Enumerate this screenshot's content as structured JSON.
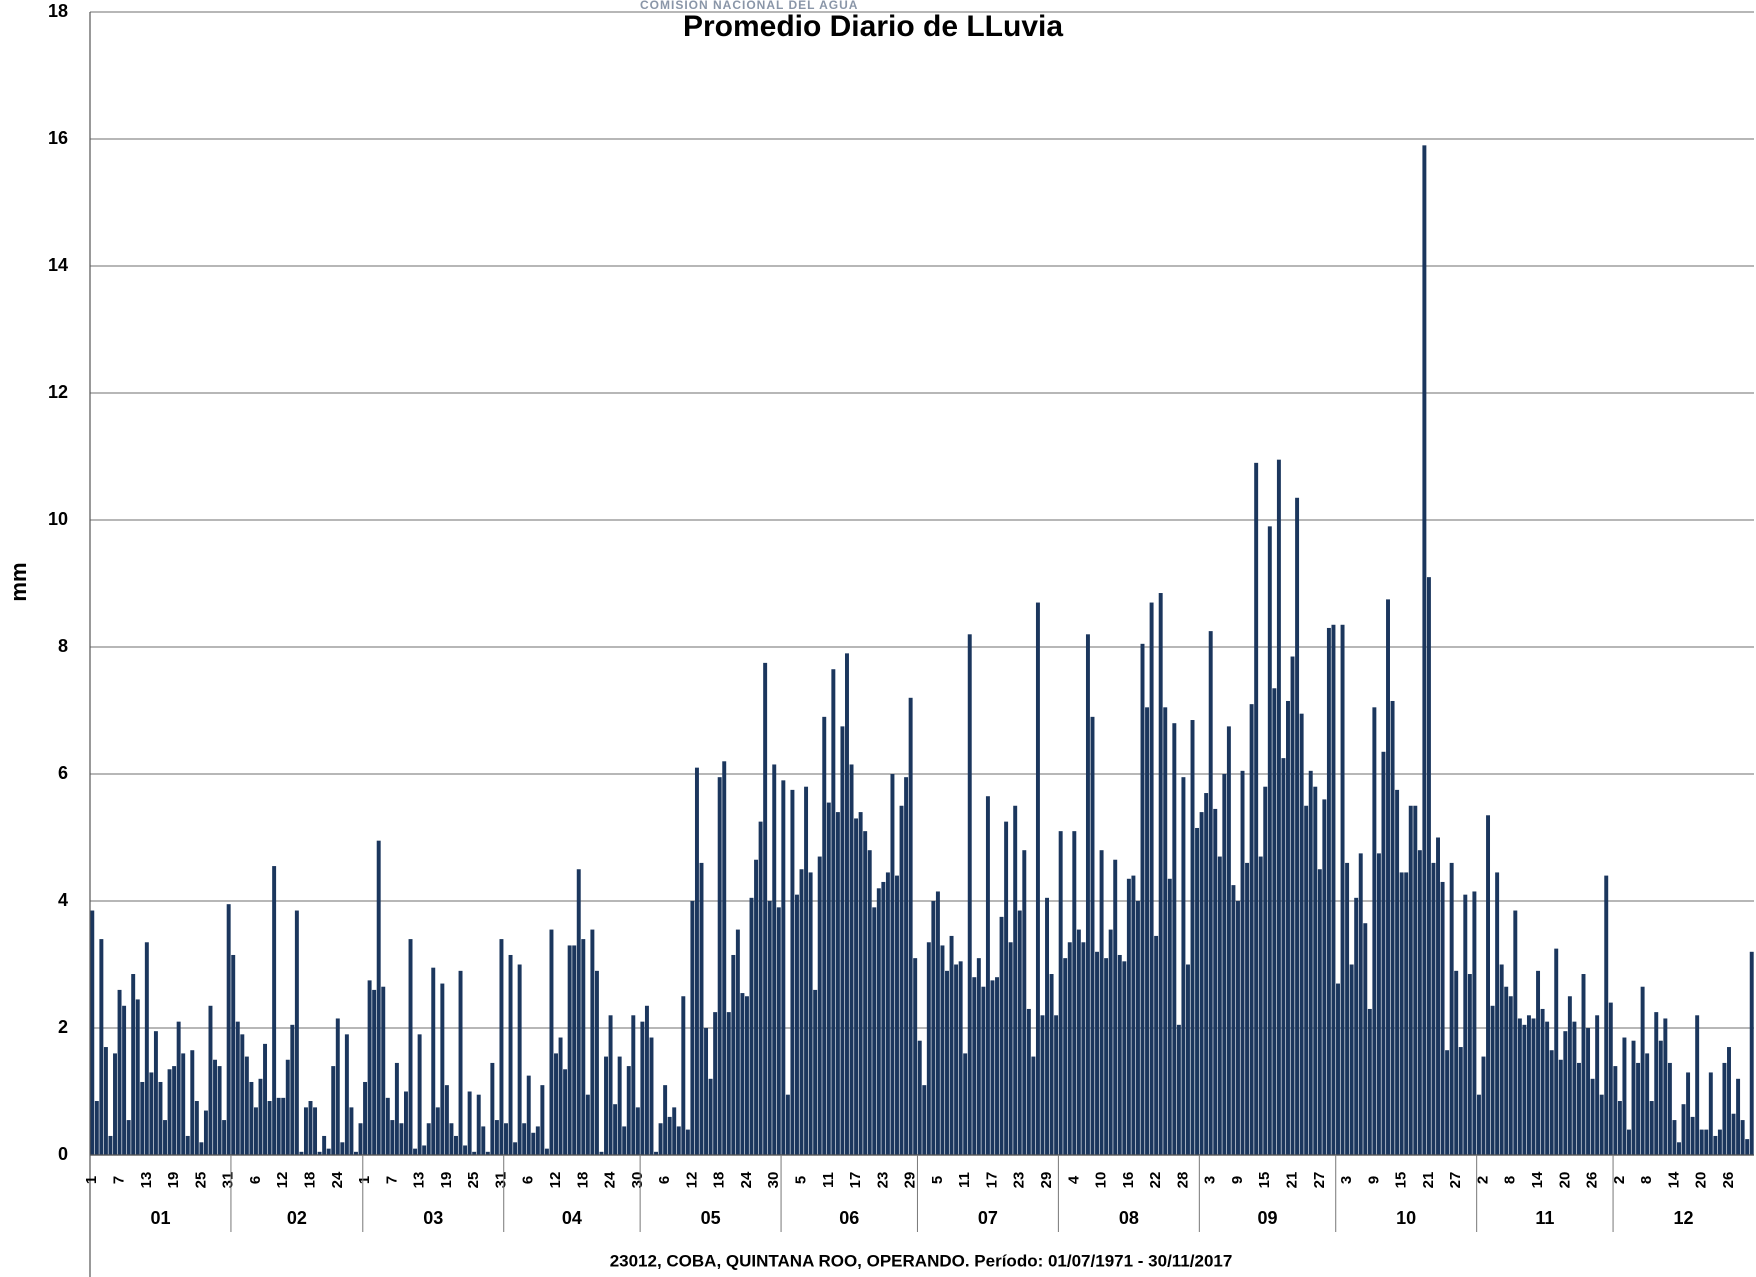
{
  "chart_data": {
    "type": "bar",
    "title": "Promedio Diario de LLuvia",
    "header_text": "COMISIÓN NACIONAL DEL AGUA",
    "y_label": "mm",
    "x_label": "23012, COBA, QUINTANA ROO, OPERANDO. Período: 01/07/1971 - 30/11/2017",
    "color": "#1b365d",
    "ylim": [
      0,
      18
    ],
    "yticks": [
      0,
      2,
      4,
      6,
      8,
      10,
      12,
      14,
      16,
      18
    ],
    "grid": true,
    "months": [
      "01",
      "02",
      "03",
      "04",
      "05",
      "06",
      "07",
      "08",
      "09",
      "10",
      "11",
      "12"
    ],
    "categories": [
      "1",
      null,
      null,
      null,
      null,
      null,
      "7",
      null,
      null,
      null,
      null,
      null,
      "13",
      null,
      null,
      null,
      null,
      null,
      "19",
      null,
      null,
      null,
      null,
      null,
      "25",
      null,
      null,
      null,
      null,
      null,
      "31",
      null,
      null,
      null,
      null,
      null,
      "6",
      null,
      null,
      null,
      null,
      null,
      "12",
      null,
      null,
      null,
      null,
      null,
      "18",
      null,
      null,
      null,
      null,
      null,
      "24",
      null,
      null,
      null,
      null,
      null,
      "1",
      null,
      null,
      null,
      null,
      null,
      "7",
      null,
      null,
      null,
      null,
      null,
      "13",
      null,
      null,
      null,
      null,
      null,
      "19",
      null,
      null,
      null,
      null,
      null,
      "25",
      null,
      null,
      null,
      null,
      null,
      "31",
      null,
      null,
      null,
      null,
      null,
      "6",
      null,
      null,
      null,
      null,
      null,
      "12",
      null,
      null,
      null,
      null,
      null,
      "18",
      null,
      null,
      null,
      null,
      null,
      "24",
      null,
      null,
      null,
      null,
      null,
      "30",
      null,
      null,
      null,
      null,
      null,
      "6",
      null,
      null,
      null,
      null,
      null,
      "12",
      null,
      null,
      null,
      null,
      null,
      "18",
      null,
      null,
      null,
      null,
      null,
      "24",
      null,
      null,
      null,
      null,
      null,
      "30",
      null,
      null,
      null,
      null,
      null,
      "5",
      null,
      null,
      null,
      null,
      null,
      "11",
      null,
      null,
      null,
      null,
      null,
      "17",
      null,
      null,
      null,
      null,
      null,
      "23",
      null,
      null,
      null,
      null,
      null,
      "29",
      null,
      null,
      null,
      null,
      null,
      "5",
      null,
      null,
      null,
      null,
      null,
      "11",
      null,
      null,
      null,
      null,
      null,
      "17",
      null,
      null,
      null,
      null,
      null,
      "23",
      null,
      null,
      null,
      null,
      null,
      "29",
      null,
      null,
      null,
      null,
      null,
      "4",
      null,
      null,
      null,
      null,
      null,
      "10",
      null,
      null,
      null,
      null,
      null,
      "16",
      null,
      null,
      null,
      null,
      null,
      "22",
      null,
      null,
      null,
      null,
      null,
      "28",
      null,
      null,
      null,
      null,
      null,
      "3",
      null,
      null,
      null,
      null,
      null,
      "9",
      null,
      null,
      null,
      null,
      null,
      "15",
      null,
      null,
      null,
      null,
      null,
      "21",
      null,
      null,
      null,
      null,
      null,
      "27",
      null,
      null,
      null,
      null,
      null,
      "3",
      null,
      null,
      null,
      null,
      null,
      "9",
      null,
      null,
      null,
      null,
      null,
      "15",
      null,
      null,
      null,
      null,
      null,
      "21",
      null,
      null,
      null,
      null,
      null,
      "27",
      null,
      null,
      null,
      null,
      null,
      "2",
      null,
      null,
      null,
      null,
      null,
      "8",
      null,
      null,
      null,
      null,
      null,
      "14",
      null,
      null,
      null,
      null,
      null,
      "20",
      null,
      null,
      null,
      null,
      null,
      "26",
      null,
      null,
      null,
      null,
      null,
      "2",
      null,
      null,
      null,
      null,
      null,
      "8",
      null,
      null,
      null,
      null,
      null,
      "14",
      null,
      null,
      null,
      null,
      null,
      "20",
      null,
      null,
      null,
      null,
      null,
      "26",
      null,
      null,
      null,
      null,
      null
    ],
    "values": [
      3.85,
      0.85,
      3.4,
      1.7,
      0.3,
      1.6,
      2.6,
      2.35,
      0.55,
      2.85,
      2.45,
      1.15,
      3.35,
      1.3,
      1.95,
      1.15,
      0.55,
      1.35,
      1.4,
      2.1,
      1.6,
      0.3,
      1.65,
      0.85,
      0.2,
      0.7,
      2.35,
      1.5,
      1.4,
      0.55,
      3.95,
      3.15,
      2.1,
      1.9,
      1.55,
      1.15,
      0.75,
      1.2,
      1.75,
      0.85,
      4.55,
      0.9,
      0.9,
      1.5,
      2.05,
      3.85,
      0.05,
      0.75,
      0.85,
      0.75,
      0.05,
      0.3,
      0.1,
      1.4,
      2.15,
      0.2,
      1.9,
      0.75,
      0.05,
      0.5,
      1.15,
      2.75,
      2.6,
      4.95,
      2.65,
      0.9,
      0.55,
      1.45,
      0.5,
      1.0,
      3.4,
      0.1,
      1.9,
      0.15,
      0.5,
      2.95,
      0.75,
      2.7,
      1.1,
      0.5,
      0.3,
      2.9,
      0.15,
      1.0,
      0.05,
      0.95,
      0.45,
      0.05,
      1.45,
      0.55,
      3.4,
      0.5,
      3.15,
      0.2,
      3.0,
      0.5,
      1.25,
      0.35,
      0.45,
      1.1,
      0.1,
      3.55,
      1.6,
      1.85,
      1.35,
      3.3,
      3.3,
      4.5,
      3.4,
      0.95,
      3.55,
      2.9,
      0.05,
      1.55,
      2.2,
      0.8,
      1.55,
      0.45,
      1.4,
      2.2,
      0.75,
      2.1,
      2.35,
      1.85,
      0.05,
      0.5,
      1.1,
      0.6,
      0.75,
      0.45,
      2.5,
      0.4,
      4.0,
      6.1,
      4.6,
      2.0,
      1.2,
      2.25,
      5.95,
      6.2,
      2.25,
      3.15,
      3.55,
      2.55,
      2.5,
      4.05,
      4.65,
      5.25,
      7.75,
      4.0,
      6.15,
      3.9,
      5.9,
      0.95,
      5.75,
      4.1,
      4.5,
      5.8,
      4.45,
      2.6,
      4.7,
      6.9,
      5.55,
      7.65,
      5.4,
      6.75,
      7.9,
      6.15,
      5.3,
      5.4,
      5.1,
      4.8,
      3.9,
      4.2,
      4.3,
      4.45,
      6.0,
      4.4,
      5.5,
      5.95,
      7.2,
      3.1,
      1.8,
      1.1,
      3.35,
      4.0,
      4.15,
      3.3,
      2.9,
      3.45,
      3.0,
      3.05,
      1.6,
      8.2,
      2.8,
      3.1,
      2.65,
      5.65,
      2.75,
      2.8,
      3.75,
      5.25,
      3.35,
      5.5,
      3.85,
      4.8,
      2.3,
      1.55,
      8.7,
      2.2,
      4.05,
      2.85,
      2.2,
      5.1,
      3.1,
      3.35,
      5.1,
      3.55,
      3.35,
      8.2,
      6.9,
      3.2,
      4.8,
      3.1,
      3.55,
      4.65,
      3.15,
      3.05,
      4.35,
      4.4,
      4.0,
      8.05,
      7.05,
      8.7,
      3.45,
      8.85,
      7.05,
      4.35,
      6.8,
      2.05,
      5.95,
      3.0,
      6.85,
      5.15,
      5.4,
      5.7,
      8.25,
      5.45,
      4.7,
      6.0,
      6.75,
      4.25,
      4.0,
      6.05,
      4.6,
      7.1,
      10.9,
      4.7,
      5.8,
      9.9,
      7.35,
      10.95,
      6.25,
      7.15,
      7.85,
      10.35,
      6.95,
      5.5,
      6.05,
      5.8,
      4.5,
      5.6,
      8.3,
      8.35,
      2.7,
      8.35,
      4.6,
      3.0,
      4.05,
      4.75,
      3.65,
      2.3,
      7.05,
      4.75,
      6.35,
      8.75,
      7.15,
      5.75,
      4.45,
      4.45,
      5.5,
      5.5,
      4.8,
      15.9,
      9.1,
      4.6,
      5.0,
      4.3,
      1.65,
      4.6,
      2.9,
      1.7,
      4.1,
      2.85,
      4.15,
      0.95,
      1.55,
      5.35,
      2.35,
      4.45,
      3.0,
      2.65,
      2.5,
      3.85,
      2.15,
      2.05,
      2.2,
      2.15,
      2.9,
      2.3,
      2.1,
      1.65,
      3.25,
      1.5,
      1.95,
      2.5,
      2.1,
      1.45,
      2.85,
      2.0,
      1.2,
      2.2,
      0.95,
      4.4,
      2.4,
      1.4,
      0.85,
      1.85,
      0.4,
      1.8,
      1.45,
      2.65,
      1.6,
      0.85,
      2.25,
      1.8,
      2.15,
      1.45,
      0.55,
      0.2,
      0.8,
      1.3,
      0.6,
      2.2,
      0.4,
      0.4,
      1.3,
      0.3,
      0.4,
      1.45,
      1.7,
      0.65,
      1.2,
      0.55,
      0.25,
      3.2
    ]
  }
}
